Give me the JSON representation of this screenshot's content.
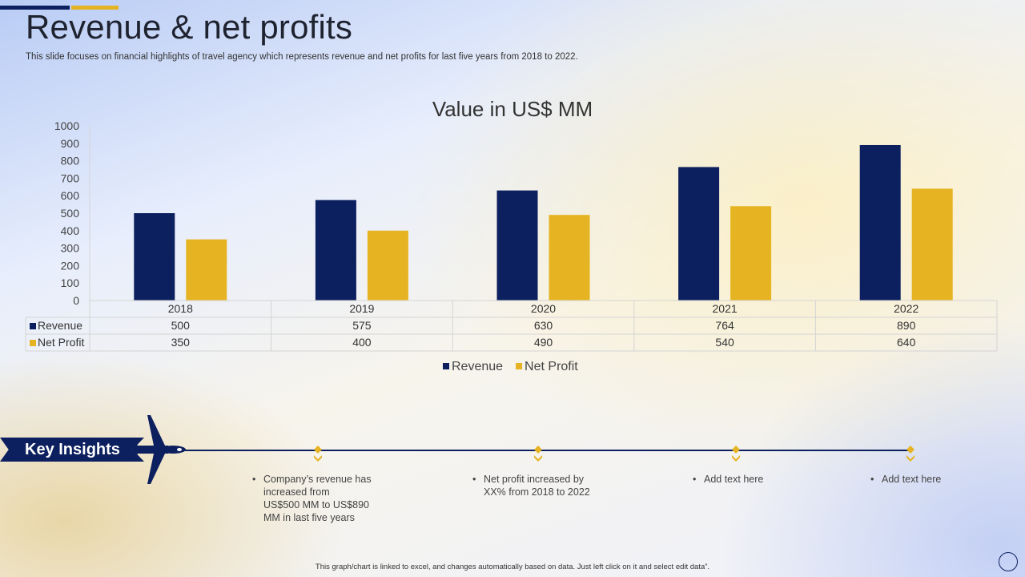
{
  "header": {
    "title": "Revenue & net profits",
    "subtitle": "This slide focuses on financial highlights of travel agency which represents revenue and net profits for last five years from 2018 to 2022."
  },
  "chart_data": {
    "type": "bar",
    "title": "Value in US$ MM",
    "categories": [
      "2018",
      "2019",
      "2020",
      "2021",
      "2022"
    ],
    "series": [
      {
        "name": "Revenue",
        "color": "#0c1f5e",
        "values": [
          500,
          575,
          630,
          764,
          890
        ]
      },
      {
        "name": "Net Profit",
        "color": "#e6b422",
        "values": [
          350,
          400,
          490,
          540,
          640
        ]
      }
    ],
    "ylim": [
      0,
      1000
    ],
    "yticks": [
      0,
      100,
      200,
      300,
      400,
      500,
      600,
      700,
      800,
      900,
      1000
    ],
    "legend": "bottom",
    "data_table": true
  },
  "insights": {
    "banner_label": "Key Insights",
    "items": [
      {
        "lines": [
          "Company’s revenue  has",
          "increased from",
          "US$500 MM to US$890",
          "MM in last five  years"
        ]
      },
      {
        "lines": [
          "Net profit increased by",
          "XX%  from 2018 to 2022"
        ]
      },
      {
        "lines": [
          "Add text here"
        ]
      },
      {
        "lines": [
          "Add text here"
        ]
      }
    ]
  },
  "footer": {
    "note": "This graph/chart is linked to excel, and changes automatically based on data. Just left click on it and select edit data”."
  },
  "colors": {
    "navy": "#0c1f5e",
    "gold": "#e6b422"
  }
}
